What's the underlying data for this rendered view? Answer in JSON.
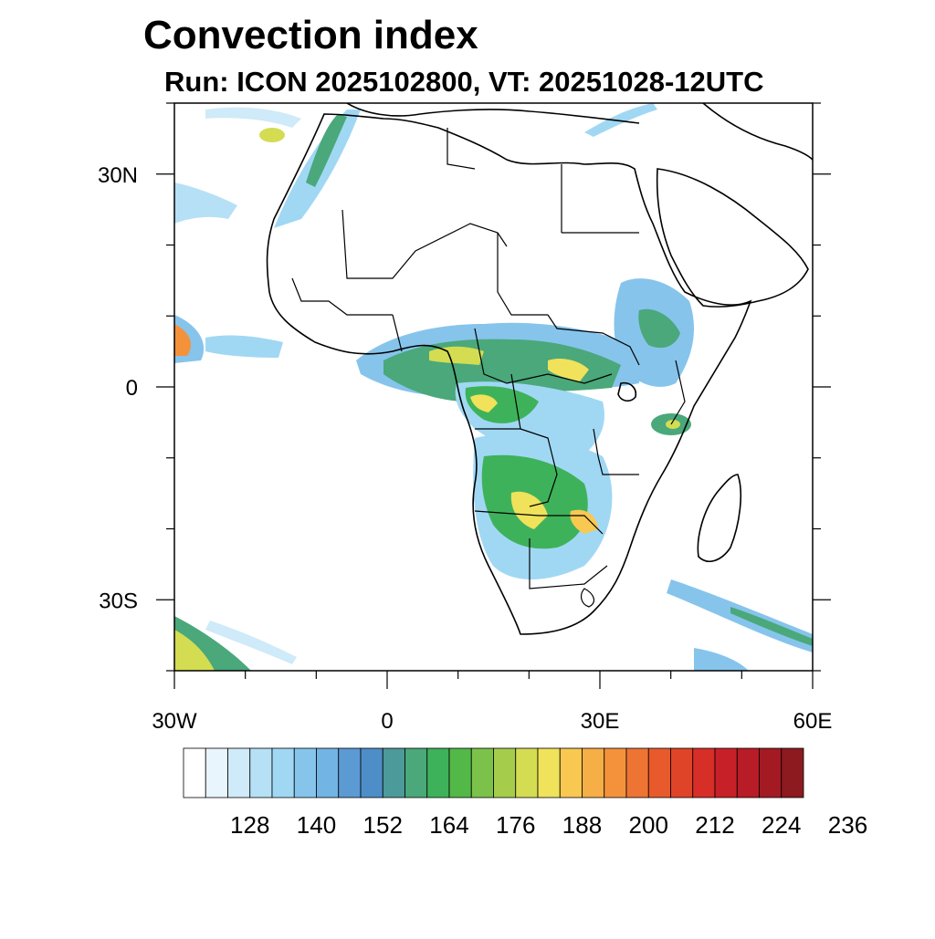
{
  "title": "Convection index",
  "subtitle": "Run: ICON 2025102800,  VT: 20251028-12UTC",
  "map": {
    "lon_range": [
      -30,
      60
    ],
    "lat_range": [
      -40,
      40
    ],
    "lat_ticks": [
      {
        "value": 30,
        "label": "30N"
      },
      {
        "value": 0,
        "label": "0"
      },
      {
        "value": -30,
        "label": "30S"
      }
    ],
    "lon_ticks": [
      {
        "value": -30,
        "label": "30W"
      },
      {
        "value": 0,
        "label": "0"
      },
      {
        "value": 30,
        "label": "30E"
      },
      {
        "value": 60,
        "label": "60E"
      }
    ]
  },
  "colorbar": {
    "colors": [
      "#ffffff",
      "#e8f5fc",
      "#cfeaf8",
      "#b6e0f6",
      "#a0d8f4",
      "#86c4ec",
      "#72b4e4",
      "#5c9ad4",
      "#4d8ec8",
      "#4c9a9a",
      "#4aa87a",
      "#3eb25a",
      "#52b848",
      "#7cc24a",
      "#a6cc4c",
      "#d4dc52",
      "#f0e25a",
      "#f8c850",
      "#f6ae46",
      "#f4923c",
      "#ee7434",
      "#e85a2c",
      "#e04428",
      "#d82e28",
      "#c82028",
      "#b81c26",
      "#a41a22",
      "#8c1a1e"
    ],
    "labels": [
      "128",
      "140",
      "152",
      "164",
      "176",
      "188",
      "200",
      "212",
      "224",
      "236"
    ]
  }
}
